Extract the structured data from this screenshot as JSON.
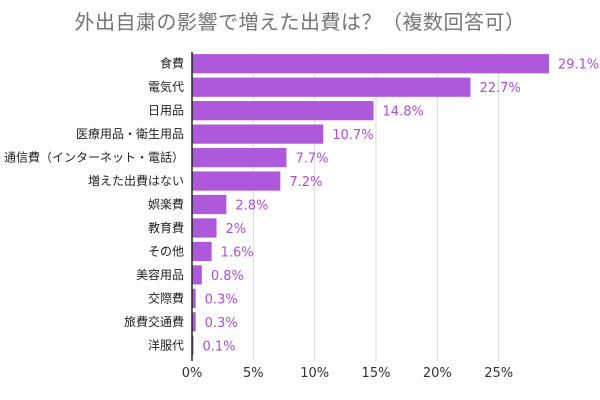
{
  "chart_data": {
    "type": "bar",
    "orientation": "horizontal",
    "title": "外出自粛の影響で増えた出費は？（複数回答可）",
    "categories": [
      "食費",
      "電気代",
      "日用品",
      "医療用品・衛生用品",
      "通信費（インターネット・電話）",
      "増えた出費はない",
      "娯楽費",
      "教育費",
      "その他",
      "美容用品",
      "交際費",
      "旅費交通費",
      "洋服代"
    ],
    "values": [
      29.1,
      22.7,
      14.8,
      10.7,
      7.7,
      7.2,
      2.8,
      2.0,
      1.6,
      0.8,
      0.3,
      0.3,
      0.1
    ],
    "value_labels": [
      "29.1%",
      "22.7%",
      "14.8%",
      "10.7%",
      "7.7%",
      "7.2%",
      "2.8%",
      "2%",
      "1.6%",
      "0.8%",
      "0.3%",
      "0.3%",
      "0.1%"
    ],
    "xlim": [
      0,
      30
    ],
    "ticks": [
      0,
      5,
      10,
      15,
      20,
      25
    ],
    "tick_labels": [
      "0%",
      "5%",
      "10%",
      "15%",
      "20%",
      "25%"
    ],
    "grid": true,
    "legend": "none",
    "bar_color": "#ae59dc",
    "label_color": "#b24bdb"
  }
}
